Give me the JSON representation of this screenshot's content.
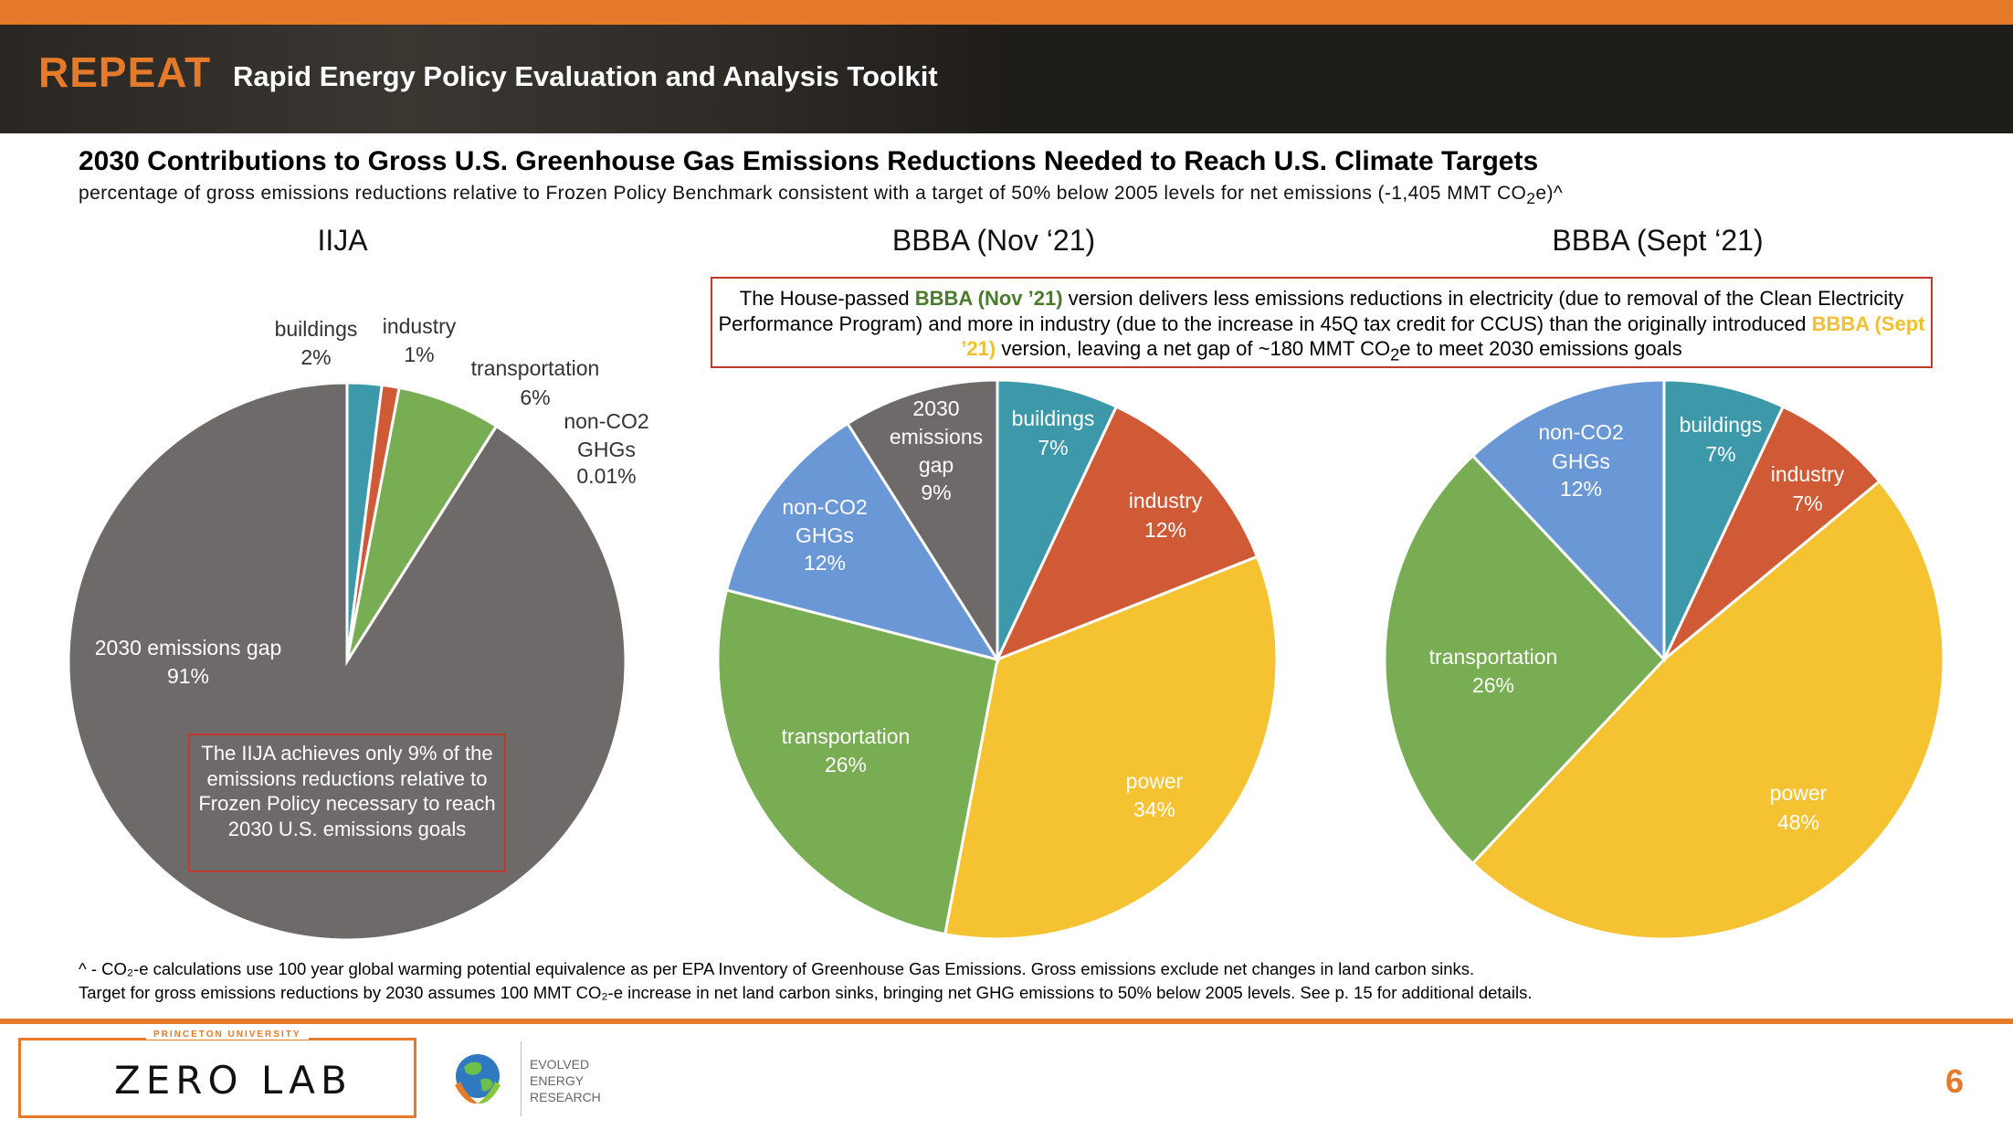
{
  "header": {
    "brand": "REPEAT",
    "subtitle": "Rapid Energy Policy Evaluation and Analysis Toolkit"
  },
  "chart": {
    "title": "2030 Contributions to Gross U.S. Greenhouse Gas Emissions Reductions Needed to Reach U.S. Climate Targets",
    "subtitle_text": "percentage of gross emissions reductions relative to Frozen Policy Benchmark consistent with a target of 50% below 2005 levels for net emissions (-1,405 MMT CO",
    "subtitle_sub": "2",
    "subtitle_tail": "e)^"
  },
  "colors": {
    "buildings": "#3d98a9",
    "industry": "#d15a36",
    "transportation": "#78ad53",
    "non-CO2 GHGs": "#6a97d6",
    "2030 emissions gap": "#6e6a69",
    "power": "#f5c331",
    "accent": "#e57a2a"
  },
  "chart_data": [
    {
      "type": "pie",
      "title": "IIJA",
      "slices": [
        {
          "label": "buildings",
          "value": 2,
          "value_label": "2%"
        },
        {
          "label": "industry",
          "value": 1,
          "value_label": "1%"
        },
        {
          "label": "transportation",
          "value": 6,
          "value_label": "6%"
        },
        {
          "label": "non-CO2 GHGs",
          "value": 0.01,
          "value_label": "0.01%"
        },
        {
          "label": "2030 emissions gap",
          "value": 91,
          "value_label": "91%"
        }
      ]
    },
    {
      "type": "pie",
      "title": "BBBA (Nov ‘21)",
      "slices": [
        {
          "label": "buildings",
          "value": 7,
          "value_label": "7%"
        },
        {
          "label": "industry",
          "value": 12,
          "value_label": "12%"
        },
        {
          "label": "power",
          "value": 34,
          "value_label": "34%"
        },
        {
          "label": "transportation",
          "value": 26,
          "value_label": "26%"
        },
        {
          "label": "non-CO2 GHGs",
          "value": 12,
          "value_label": "12%"
        },
        {
          "label": "2030 emissions gap",
          "value": 9,
          "value_label": "9%"
        }
      ]
    },
    {
      "type": "pie",
      "title": "BBBA (Sept ‘21)",
      "slices": [
        {
          "label": "buildings",
          "value": 7,
          "value_label": "7%"
        },
        {
          "label": "industry",
          "value": 7,
          "value_label": "7%"
        },
        {
          "label": "power",
          "value": 48,
          "value_label": "48%"
        },
        {
          "label": "transportation",
          "value": 26,
          "value_label": "26%"
        },
        {
          "label": "non-CO2 GHGs",
          "value": 12,
          "value_label": "12%"
        }
      ]
    }
  ],
  "callouts": {
    "iija": "The IIJA achieves only 9% of the emissions reductions relative to Frozen Policy necessary to reach 2030 U.S. emissions goals",
    "bbba": {
      "p1": "The House-passed ",
      "hl1": "BBBA (Nov ’21)",
      "p2": " version delivers less emissions reductions in electricity (due to removal of the Clean Electricity Performance Program) and more in industry (due to the increase in 45Q tax credit for CCUS) than the originally introduced ",
      "hl2": "BBBA (Sept ’21)",
      "p3": " version, leaving a net gap of ~180 MMT CO",
      "sub": "2",
      "p4": "e to meet 2030 emissions goals"
    }
  },
  "footnotes": {
    "line1": "^ - CO₂-e calculations use 100 year global warming potential equivalence as per EPA Inventory of Greenhouse Gas Emissions. Gross emissions exclude net changes in land carbon sinks.",
    "line2": "Target for gross emissions reductions by 2030 assumes 100 MMT CO₂-e increase in net land carbon sinks, bringing net GHG emissions to 50% below 2005 levels. See p. 15 for additional details."
  },
  "footer": {
    "university": "PRINCETON UNIVERSITY",
    "lab": "ZERO LAB",
    "partner": [
      "EVOLVED",
      "ENERGY",
      "RESEARCH"
    ],
    "page_number": "6"
  }
}
